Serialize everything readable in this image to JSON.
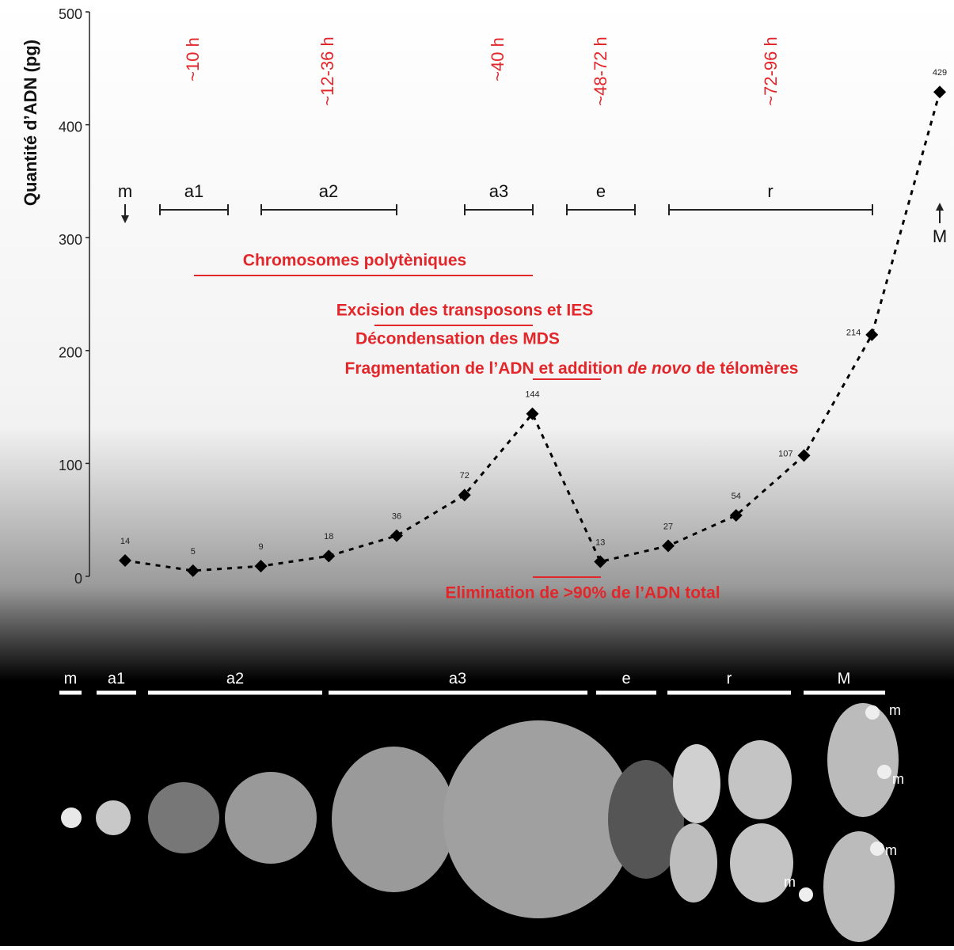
{
  "chart_data": {
    "type": "line",
    "y_label": "Quantité d’ADN (pg)",
    "categories": [
      null,
      null,
      null,
      null,
      null,
      null,
      null,
      null,
      null,
      null,
      null,
      null,
      null
    ],
    "values": [
      14,
      5,
      9,
      18,
      36,
      72,
      144,
      13,
      27,
      54,
      107,
      214,
      429
    ],
    "color": "#000000",
    "ylim": [
      0,
      500
    ],
    "yticks": [
      0,
      100,
      200,
      300,
      400,
      500
    ],
    "grid": false
  },
  "annotations": {
    "time_labels": [
      "~10 h",
      "~12-36 h",
      "~40 h",
      "~48-72 h",
      "~72-96 h"
    ],
    "stages": [
      "m",
      "a1",
      "a2",
      "a3",
      "e",
      "r",
      "M"
    ],
    "events": [
      "Chromosomes polytèniques",
      "Excision des transposons et IES",
      "Décondensation des MDS"
    ],
    "fragmentation": [
      "Fragmentation de l’ADN et addition ",
      "de novo",
      " de télomères"
    ],
    "elimination": "Elimination de >90% de l’ADN total"
  },
  "micrograph": {
    "stages": [
      "m",
      "a1",
      "a2",
      "a3",
      "e",
      "r",
      "M"
    ],
    "cell_labels": [
      "m",
      "m",
      "m",
      "m"
    ]
  }
}
